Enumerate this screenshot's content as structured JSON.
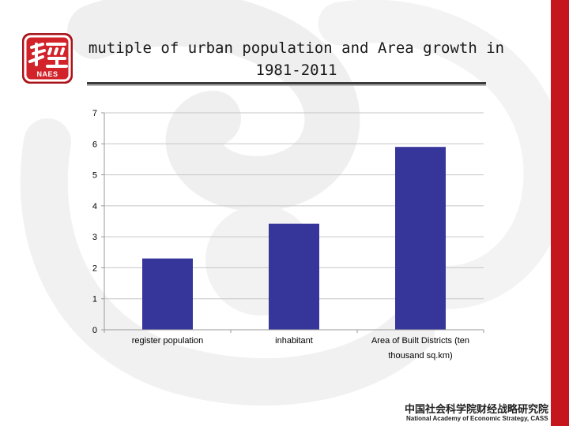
{
  "slide": {
    "title": "mutiple of urban population and Area growth in 1981-2011",
    "logo_text": "NAES",
    "footer_cn": "中国社会科学院财经战略研究院",
    "footer_en": "National Academy of Economic Strategy, CASS"
  },
  "colors": {
    "bar": "#35359a",
    "accent_red": "#c4161c",
    "grid": "#c6c6c6"
  },
  "chart_data": {
    "type": "bar",
    "categories": [
      "register population",
      "inhabitant",
      "Area of Built Districts (ten thousand sq.km)"
    ],
    "values": [
      2.3,
      3.42,
      5.9
    ],
    "ylim": [
      0,
      7
    ],
    "yticks": [
      "0",
      "1",
      "2",
      "3",
      "4",
      "5",
      "6",
      "7"
    ],
    "grid": true,
    "legend": "none"
  }
}
